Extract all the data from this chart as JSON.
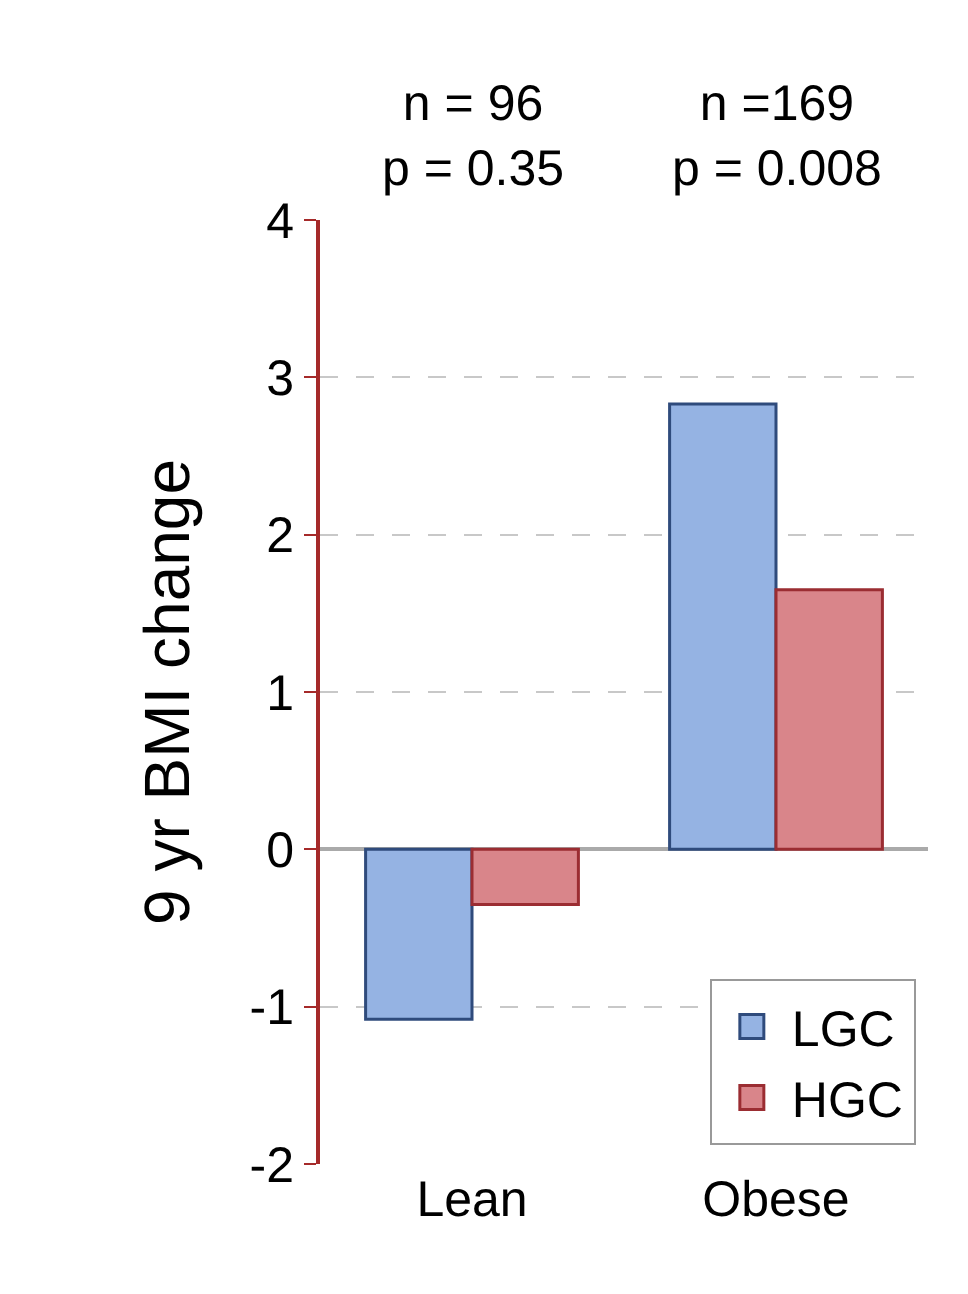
{
  "chart_data": {
    "type": "bar",
    "ylabel": "9 yr BMI change",
    "categories": [
      "Lean",
      "Obese"
    ],
    "series": [
      {
        "name": "LGC",
        "color": "#95b3e3",
        "values": [
          -1.08,
          2.83
        ]
      },
      {
        "name": "HGC",
        "color": "#d9858a",
        "values": [
          -0.35,
          1.65
        ]
      }
    ],
    "ylim": [
      -2,
      4
    ],
    "yticks": [
      -2,
      -1,
      0,
      1,
      2,
      3,
      4
    ],
    "grid": "y",
    "legend": "bottom right",
    "annotations": [
      "n = 96\np = 0.35",
      "n =169\np = 0.008"
    ]
  }
}
